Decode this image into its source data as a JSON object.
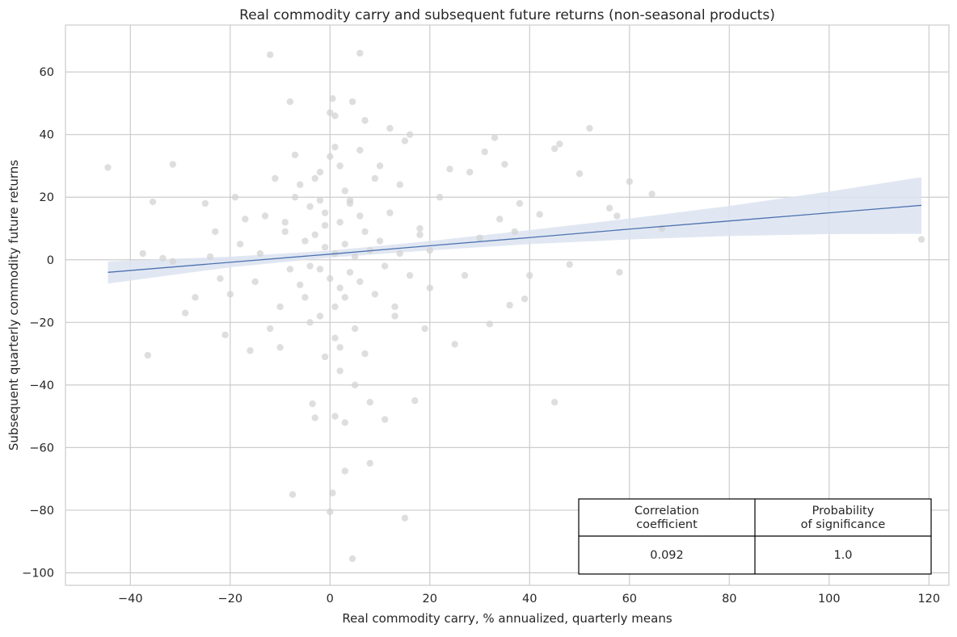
{
  "chart_data": {
    "type": "scatter",
    "title": "Real commodity carry and subsequent future returns (non-seasonal products)",
    "xlabel": "Real commodity carry, % annualized, quarterly means",
    "ylabel": "Subsequent quarterly commodity future returns",
    "xlim": [
      -53,
      124
    ],
    "ylim": [
      -104,
      75
    ],
    "x_ticks": [
      -40,
      -20,
      0,
      20,
      40,
      60,
      80,
      100,
      120
    ],
    "y_ticks": [
      -100,
      -80,
      -60,
      -40,
      -20,
      0,
      20,
      40,
      60
    ],
    "x_tick_labels": [
      "−40",
      "−20",
      "0",
      "20",
      "40",
      "60",
      "80",
      "100",
      "120"
    ],
    "y_tick_labels": [
      "−100",
      "−80",
      "−60",
      "−40",
      "−20",
      "0",
      "20",
      "40",
      "60"
    ],
    "grid": true,
    "colors": {
      "points": "#d3d3d3",
      "regression": "#4c72b0",
      "band": "#dce3f0",
      "grid": "#cccccc"
    },
    "regression": {
      "x": [
        -44.5,
        -20,
        0,
        20,
        40,
        60,
        80,
        100,
        118.5
      ],
      "y": [
        -4.0,
        -0.8,
        1.8,
        4.5,
        7.1,
        9.8,
        12.4,
        15.0,
        17.4
      ],
      "ci_upper": [
        -0.5,
        1.0,
        2.9,
        6.0,
        9.5,
        13.2,
        17.2,
        21.8,
        26.4
      ],
      "ci_lower": [
        -7.6,
        -2.4,
        0.7,
        3.0,
        5.0,
        6.5,
        7.6,
        8.2,
        8.3
      ]
    },
    "series": [
      {
        "points": [
          [
            -44.5,
            29.5
          ],
          [
            -37.5,
            2.0
          ],
          [
            -36.5,
            -30.5
          ],
          [
            -35.5,
            18.5
          ],
          [
            -33.5,
            0.5
          ],
          [
            -31.5,
            30.5
          ],
          [
            -31.5,
            -0.5
          ],
          [
            -29,
            -17
          ],
          [
            -27,
            -12
          ],
          [
            -25,
            18
          ],
          [
            -24,
            1
          ],
          [
            -23,
            9
          ],
          [
            -22,
            -6
          ],
          [
            -21,
            -24
          ],
          [
            -20,
            -11
          ],
          [
            -19,
            20
          ],
          [
            -18,
            5
          ],
          [
            -17,
            13
          ],
          [
            -16,
            -29
          ],
          [
            -15,
            -7
          ],
          [
            -14,
            2
          ],
          [
            -13,
            14
          ],
          [
            -12,
            65.5
          ],
          [
            -12,
            -22
          ],
          [
            -11,
            26
          ],
          [
            -10,
            -28
          ],
          [
            -9,
            9
          ],
          [
            -8,
            50.5
          ],
          [
            -7.5,
            -75
          ],
          [
            -7,
            33.5
          ],
          [
            -6,
            24
          ],
          [
            -5,
            -12
          ],
          [
            -4,
            17
          ],
          [
            -3.5,
            -46
          ],
          [
            -3,
            -50.5
          ],
          [
            -2,
            28
          ],
          [
            -1,
            11
          ],
          [
            0,
            47
          ],
          [
            0,
            -80.5
          ],
          [
            0.5,
            -74.5
          ],
          [
            0.5,
            51.5
          ],
          [
            1,
            46
          ],
          [
            1,
            36
          ],
          [
            1,
            -50
          ],
          [
            2,
            30
          ],
          [
            2,
            -35.5
          ],
          [
            3,
            -67.5
          ],
          [
            3,
            -52
          ],
          [
            4,
            19
          ],
          [
            4.5,
            50.5
          ],
          [
            4.5,
            -95.5
          ],
          [
            5,
            -40
          ],
          [
            6,
            66
          ],
          [
            6,
            35
          ],
          [
            7,
            44.5
          ],
          [
            8,
            -65
          ],
          [
            8,
            -45.5
          ],
          [
            9,
            26
          ],
          [
            10,
            30
          ],
          [
            11,
            -51
          ],
          [
            12,
            42
          ],
          [
            13,
            -15
          ],
          [
            14,
            24
          ],
          [
            15,
            38
          ],
          [
            15,
            -82.5
          ],
          [
            16,
            40
          ],
          [
            17,
            -45
          ],
          [
            18,
            8
          ],
          [
            19,
            -22
          ],
          [
            20,
            -9
          ],
          [
            22,
            20
          ],
          [
            24,
            29
          ],
          [
            25,
            -27
          ],
          [
            27,
            -5
          ],
          [
            28,
            28
          ],
          [
            30,
            7
          ],
          [
            31,
            34.5
          ],
          [
            32,
            -20.5
          ],
          [
            33,
            39
          ],
          [
            34,
            13
          ],
          [
            35,
            30.5
          ],
          [
            36,
            -14.5
          ],
          [
            37,
            9
          ],
          [
            38,
            18
          ],
          [
            39,
            -12.5
          ],
          [
            40,
            -5
          ],
          [
            42,
            14.5
          ],
          [
            45,
            35.5
          ],
          [
            45,
            -45.5
          ],
          [
            46,
            37
          ],
          [
            48,
            -1.5
          ],
          [
            50,
            27.5
          ],
          [
            52,
            42
          ],
          [
            56,
            16.5
          ],
          [
            57.5,
            14
          ],
          [
            58,
            -4
          ],
          [
            60,
            25
          ],
          [
            64.5,
            21
          ],
          [
            66.5,
            10
          ],
          [
            118.5,
            6.5
          ],
          [
            -3,
            8
          ],
          [
            -2,
            -3
          ],
          [
            -1,
            4
          ],
          [
            0,
            -6
          ],
          [
            1,
            2
          ],
          [
            2,
            -9
          ],
          [
            3,
            5
          ],
          [
            -4,
            -2
          ],
          [
            4,
            -4
          ],
          [
            -1,
            15
          ],
          [
            1,
            -15
          ],
          [
            2,
            12
          ],
          [
            -2,
            -18
          ],
          [
            5,
            1
          ],
          [
            6,
            -7
          ],
          [
            7,
            9
          ],
          [
            -5,
            6
          ],
          [
            -6,
            -8
          ],
          [
            8,
            3
          ],
          [
            9,
            -11
          ],
          [
            10,
            6
          ],
          [
            11,
            -2
          ],
          [
            12,
            15
          ],
          [
            13,
            -18
          ],
          [
            14,
            2
          ],
          [
            16,
            -5
          ],
          [
            18,
            10
          ],
          [
            20,
            3
          ],
          [
            -8,
            -3
          ],
          [
            -9,
            12
          ],
          [
            -10,
            -15
          ],
          [
            -7,
            20
          ],
          [
            3,
            22
          ],
          [
            -3,
            26
          ],
          [
            0,
            33
          ],
          [
            1,
            -25
          ],
          [
            -1,
            -31
          ],
          [
            2,
            -28
          ],
          [
            5,
            -22
          ],
          [
            7,
            -30
          ],
          [
            4,
            18
          ],
          [
            -2,
            19
          ],
          [
            6,
            14
          ],
          [
            -4,
            -20
          ],
          [
            3,
            -12
          ]
        ]
      }
    ],
    "table": {
      "headers": [
        [
          "Correlation",
          "coefficient"
        ],
        [
          "Probability",
          "of significance"
        ]
      ],
      "values": [
        "0.092",
        "1.0"
      ]
    }
  }
}
